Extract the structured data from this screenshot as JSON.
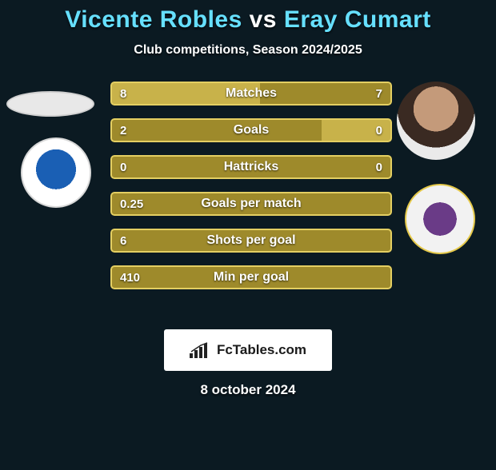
{
  "title": {
    "text": "Vicente Robles vs Eray Cumart",
    "fontsize": 30,
    "color_left": "#66e0ff",
    "color_vs": "#ffffff",
    "color_right": "#66e0ff"
  },
  "subtitle": {
    "text": "Club competitions, Season 2024/2025",
    "fontsize": 16,
    "color": "#ffffff"
  },
  "background_color": "#0b1a22",
  "stats": {
    "bar_bg_dark": "#9e8a2b",
    "bar_bg_light": "#c8b24a",
    "border_color": "#e4cf62",
    "label_fontsize": 16,
    "value_fontsize": 15,
    "rows": [
      {
        "label": "Matches",
        "left_val": "8",
        "right_val": "7",
        "left_pct": 53,
        "right_pct": 47,
        "left_color": "#c8b24a",
        "right_color": "#9e8a2b"
      },
      {
        "label": "Goals",
        "left_val": "2",
        "right_val": "0",
        "left_pct": 75,
        "right_pct": 25,
        "left_color": "#9e8a2b",
        "right_color": "#c8b24a"
      },
      {
        "label": "Hattricks",
        "left_val": "0",
        "right_val": "0",
        "left_pct": 50,
        "right_pct": 50,
        "left_color": "#9e8a2b",
        "right_color": "#9e8a2b"
      },
      {
        "label": "Goals per match",
        "left_val": "0.25",
        "right_val": "",
        "left_pct": 100,
        "right_pct": 0,
        "left_color": "#9e8a2b",
        "right_color": "#9e8a2b"
      },
      {
        "label": "Shots per goal",
        "left_val": "6",
        "right_val": "",
        "left_pct": 100,
        "right_pct": 0,
        "left_color": "#9e8a2b",
        "right_color": "#9e8a2b"
      },
      {
        "label": "Min per goal",
        "left_val": "410",
        "right_val": "",
        "left_pct": 100,
        "right_pct": 0,
        "left_color": "#9e8a2b",
        "right_color": "#9e8a2b"
      }
    ]
  },
  "player_left_name": "Vicente Robles",
  "player_right_name": "Eray Cumart",
  "brand": {
    "label": "FcTables.com",
    "fontsize": 17
  },
  "date": {
    "text": "8 october 2024",
    "fontsize": 17,
    "color": "#ffffff"
  }
}
